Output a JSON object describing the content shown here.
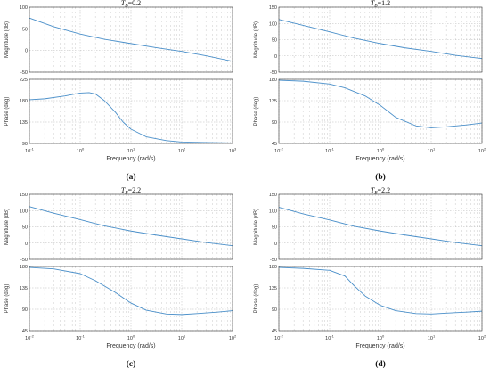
{
  "colors": {
    "curve": "#4a8fc9",
    "axes": "#333333",
    "grid": "#bbbbbb",
    "plot_bg": "#ffffff"
  },
  "chart_data": [
    {
      "type": "line",
      "label": "(a)",
      "title": "T_B=0.2",
      "title_parts": {
        "var": "T",
        "sub": "B",
        "value": "=0.2"
      },
      "xlabel": "Frequency  (rad/s)",
      "x_scale": "log",
      "xlim": [
        0.1,
        1000
      ],
      "x_ticks": [
        0.1,
        1,
        10,
        100,
        1000
      ],
      "x_tick_labels": [
        {
          "base": "10",
          "exp": "-1"
        },
        {
          "base": "10",
          "exp": "0"
        },
        {
          "base": "10",
          "exp": "1"
        },
        {
          "base": "10",
          "exp": "2"
        },
        {
          "base": "10",
          "exp": "3"
        }
      ],
      "grid": true,
      "magnitude": {
        "ylabel": "Magnitude (dB)",
        "ylim": [
          -50,
          100
        ],
        "y_ticks": [
          -50,
          0,
          50,
          100
        ],
        "y_tick_labels": [
          "-50",
          "0",
          "50",
          "100"
        ],
        "x": [
          0.1,
          0.3,
          1,
          3,
          10,
          30,
          100,
          300,
          1000
        ],
        "y": [
          75,
          55,
          38,
          26,
          16,
          7,
          -2,
          -12,
          -25
        ]
      },
      "phase": {
        "ylabel": "Phase (deg)",
        "ylim": [
          90,
          225
        ],
        "y_ticks": [
          90,
          135,
          180,
          225
        ],
        "y_tick_labels": [
          "90",
          "135",
          "180",
          "225"
        ],
        "x": [
          0.1,
          0.2,
          0.5,
          1,
          1.5,
          2,
          3,
          5,
          7,
          10,
          20,
          50,
          100,
          300,
          1000
        ],
        "y": [
          182,
          184,
          190,
          196,
          197,
          194,
          180,
          155,
          135,
          120,
          104,
          96,
          93,
          92,
          91
        ]
      }
    },
    {
      "type": "line",
      "label": "(b)",
      "title": "T_B=1.2",
      "title_parts": {
        "var": "T",
        "sub": "B",
        "value": "=1.2"
      },
      "xlabel": "Frequency  (rad/s)",
      "x_scale": "log",
      "xlim": [
        0.01,
        100
      ],
      "x_ticks": [
        0.01,
        0.1,
        1,
        10,
        100
      ],
      "x_tick_labels": [
        {
          "base": "10",
          "exp": "-2"
        },
        {
          "base": "10",
          "exp": "-1"
        },
        {
          "base": "10",
          "exp": "0"
        },
        {
          "base": "10",
          "exp": "1"
        },
        {
          "base": "10",
          "exp": "2"
        }
      ],
      "grid": true,
      "magnitude": {
        "ylabel": "Magnitude (dB)",
        "ylim": [
          -50,
          150
        ],
        "y_ticks": [
          -50,
          0,
          50,
          100,
          150
        ],
        "y_tick_labels": [
          "-50",
          "0",
          "50",
          "100",
          "150"
        ],
        "x": [
          0.01,
          0.03,
          0.1,
          0.3,
          1,
          3,
          10,
          30,
          100
        ],
        "y": [
          112,
          94,
          74,
          55,
          38,
          25,
          14,
          2,
          -8
        ]
      },
      "phase": {
        "ylabel": "Phase (deg)",
        "ylim": [
          45,
          180
        ],
        "y_ticks": [
          45,
          90,
          135,
          180
        ],
        "y_tick_labels": [
          "45",
          "90",
          "135",
          "180"
        ],
        "x": [
          0.01,
          0.03,
          0.1,
          0.2,
          0.5,
          1,
          2,
          5,
          10,
          20,
          50,
          100
        ],
        "y": [
          178,
          176,
          170,
          162,
          145,
          125,
          100,
          82,
          78,
          80,
          84,
          88
        ]
      }
    },
    {
      "type": "line",
      "label": "(c)",
      "title": "T_B=2.2",
      "title_parts": {
        "var": "T",
        "sub": "B",
        "value": "=2.2"
      },
      "xlabel": "Frequency  (rad/s)",
      "x_scale": "log",
      "xlim": [
        0.01,
        100
      ],
      "x_ticks": [
        0.01,
        0.1,
        1,
        10,
        100
      ],
      "x_tick_labels": [
        {
          "base": "10",
          "exp": "-2"
        },
        {
          "base": "10",
          "exp": "-1"
        },
        {
          "base": "10",
          "exp": "0"
        },
        {
          "base": "10",
          "exp": "1"
        },
        {
          "base": "10",
          "exp": "2"
        }
      ],
      "grid": true,
      "magnitude": {
        "ylabel": "Magnitude (dB)",
        "ylim": [
          -50,
          150
        ],
        "y_ticks": [
          -50,
          0,
          50,
          100,
          150
        ],
        "y_tick_labels": [
          "-50",
          "0",
          "50",
          "100",
          "150"
        ],
        "x": [
          0.01,
          0.03,
          0.1,
          0.3,
          1,
          3,
          10,
          30,
          100
        ],
        "y": [
          112,
          92,
          72,
          53,
          37,
          25,
          13,
          2,
          -8
        ]
      },
      "phase": {
        "ylabel": "Phase (deg)",
        "ylim": [
          45,
          180
        ],
        "y_ticks": [
          45,
          90,
          135,
          180
        ],
        "y_tick_labels": [
          "45",
          "90",
          "135",
          "180"
        ],
        "x": [
          0.01,
          0.03,
          0.1,
          0.2,
          0.5,
          1,
          2,
          5,
          10,
          20,
          50,
          100
        ],
        "y": [
          178,
          175,
          165,
          150,
          125,
          103,
          88,
          80,
          79,
          81,
          84,
          87
        ]
      }
    },
    {
      "type": "line",
      "label": "(d)",
      "title": "T_B=2.2",
      "title_parts": {
        "var": "T",
        "sub": "B",
        "value": "=2.2"
      },
      "xlabel": "Frequency  (rad/s)",
      "x_scale": "log",
      "xlim": [
        0.01,
        100
      ],
      "x_ticks": [
        0.01,
        0.1,
        1,
        10,
        100
      ],
      "x_tick_labels": [
        {
          "base": "10",
          "exp": "-2"
        },
        {
          "base": "10",
          "exp": "-1"
        },
        {
          "base": "10",
          "exp": "0"
        },
        {
          "base": "10",
          "exp": "1"
        },
        {
          "base": "10",
          "exp": "2"
        }
      ],
      "grid": true,
      "magnitude": {
        "ylabel": "Magnitude (dB)",
        "ylim": [
          -50,
          150
        ],
        "y_ticks": [
          -50,
          0,
          50,
          100,
          150
        ],
        "y_tick_labels": [
          "-50",
          "0",
          "50",
          "100",
          "150"
        ],
        "x": [
          0.01,
          0.03,
          0.1,
          0.3,
          1,
          3,
          10,
          30,
          100
        ],
        "y": [
          110,
          90,
          71,
          52,
          37,
          25,
          13,
          2,
          -8
        ]
      },
      "phase": {
        "ylabel": "Phase (deg)",
        "ylim": [
          45,
          180
        ],
        "y_ticks": [
          45,
          90,
          135,
          180
        ],
        "y_tick_labels": [
          "45",
          "90",
          "135",
          "180"
        ],
        "x": [
          0.01,
          0.03,
          0.1,
          0.2,
          0.3,
          0.5,
          1,
          2,
          5,
          10,
          20,
          50,
          100
        ],
        "y": [
          178,
          176,
          172,
          160,
          140,
          118,
          98,
          87,
          81,
          80,
          82,
          84,
          86
        ]
      }
    }
  ]
}
